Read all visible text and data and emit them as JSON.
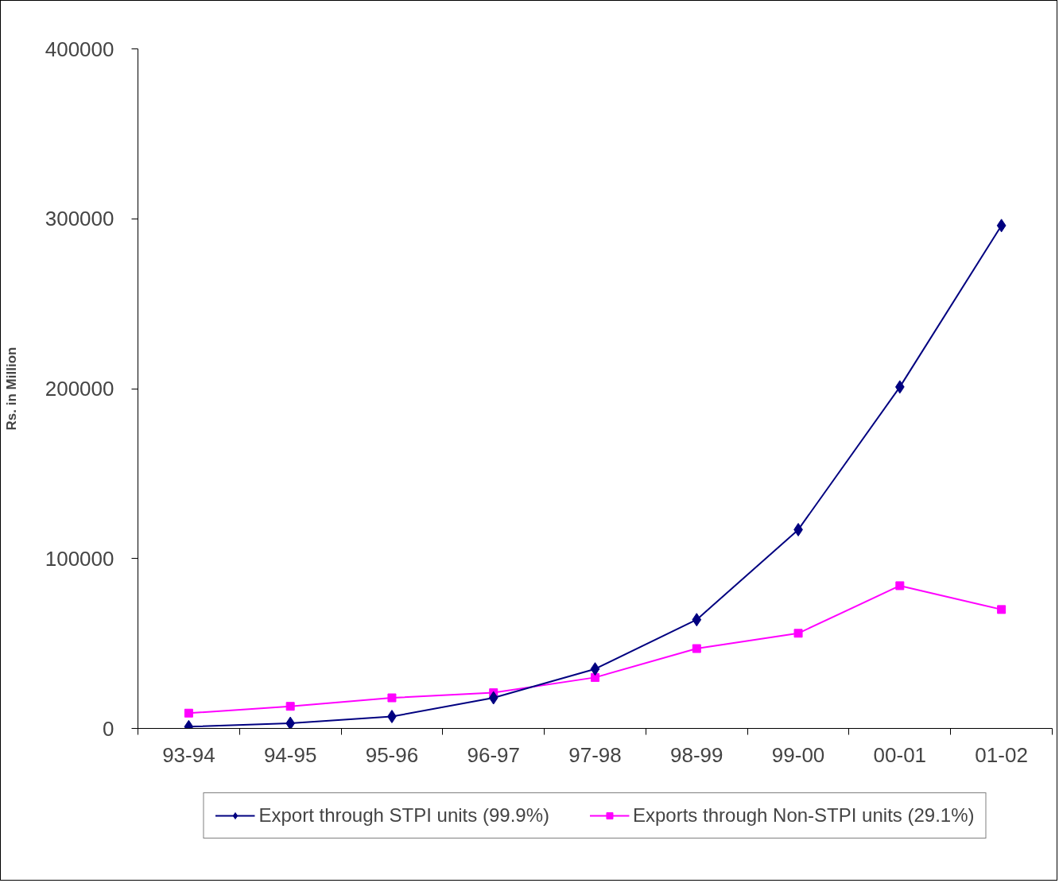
{
  "chart_data": {
    "type": "line",
    "ylabel": "Rs. in Million",
    "categories": [
      "93-94",
      "94-95",
      "95-96",
      "96-97",
      "97-98",
      "98-99",
      "99-00",
      "00-01",
      "01-02"
    ],
    "series": [
      {
        "name": "Export through STPI units (99.9%)",
        "color": "#000080",
        "marker": "diamond",
        "values": [
          1000,
          3000,
          7000,
          18000,
          35000,
          64000,
          117000,
          201000,
          296000
        ]
      },
      {
        "name": "Exports through Non-STPI units (29.1%)",
        "color": "#ff00ff",
        "marker": "square",
        "values": [
          9000,
          13000,
          18000,
          21000,
          30000,
          47000,
          56000,
          84000,
          70000
        ]
      }
    ],
    "ylim": [
      0,
      400000
    ],
    "yticks": [
      0,
      100000,
      200000,
      300000,
      400000
    ],
    "grid": false,
    "legend": "bottom",
    "line_style": "solid"
  }
}
